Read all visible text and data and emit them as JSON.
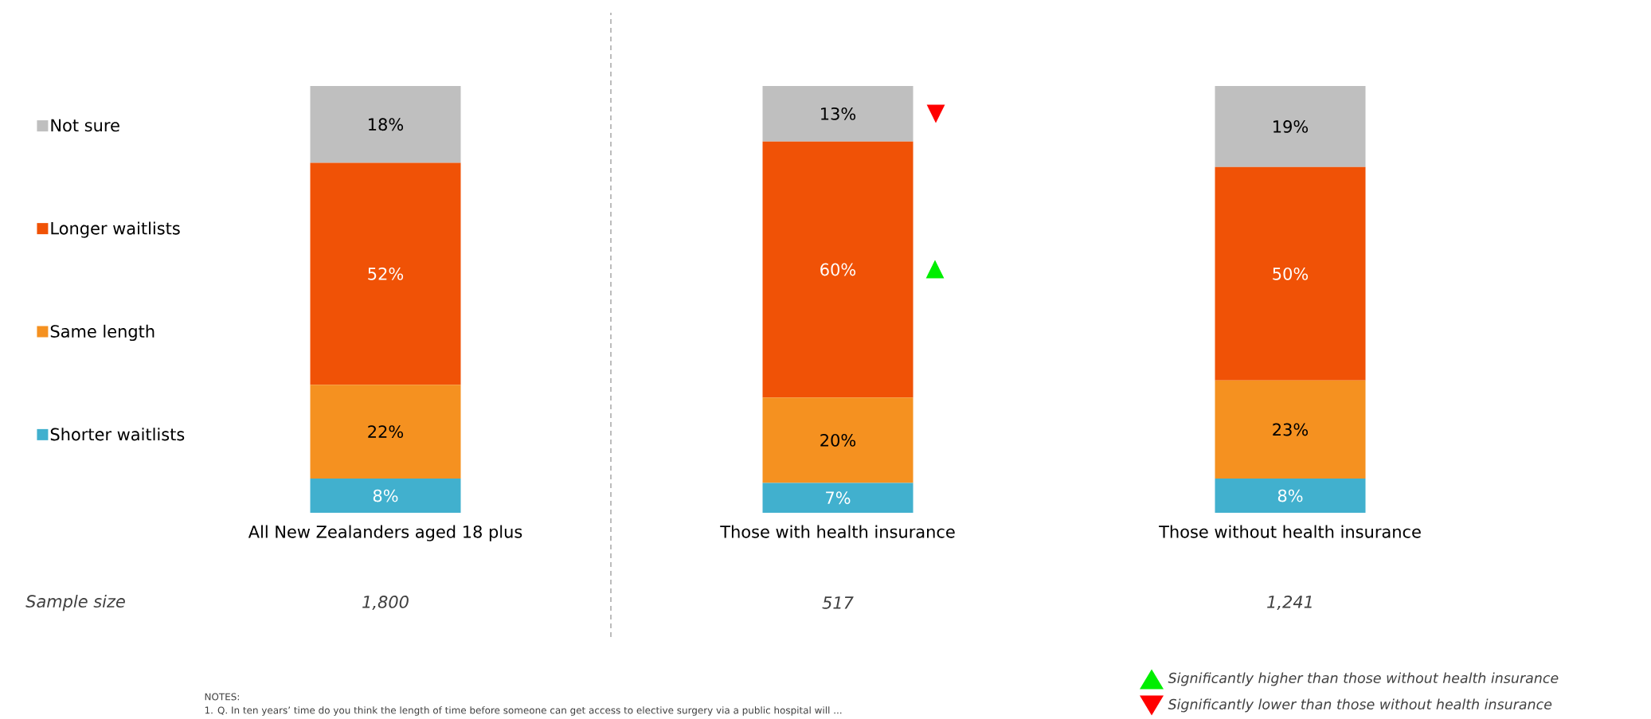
{
  "chart_data": {
    "type": "bar",
    "stacked": true,
    "categories": [
      "All New Zealanders aged 18 plus",
      "Those with health insurance",
      "Those without health insurance"
    ],
    "series": [
      {
        "name": "Shorter waitlists",
        "color": "#41b0ce",
        "values": [
          8,
          7,
          8
        ],
        "value_labels": [
          "8%",
          "7%",
          "8%"
        ]
      },
      {
        "name": "Same length",
        "color": "#f59120",
        "values": [
          22,
          20,
          23
        ],
        "value_labels": [
          "22%",
          "20%",
          "23%"
        ]
      },
      {
        "name": "Longer waitlists",
        "color": "#f05206",
        "values": [
          52,
          60,
          50
        ],
        "value_labels": [
          "52%",
          "60%",
          "50%"
        ]
      },
      {
        "name": "Not sure",
        "color": "#bfbfbf",
        "values": [
          18,
          13,
          19
        ],
        "value_labels": [
          "18%",
          "13%",
          "19%"
        ]
      }
    ],
    "legend": "left",
    "annotations": [
      "Sample size",
      "1,800",
      "517",
      "1,241",
      "NOTES:",
      "1. Q. In ten years’ time do you think the length of time before someone can get access to elective surgery via a public hospital will ...",
      "Significantly higher than those without health insurance",
      "Significantly lower than those without health insurance",
      "▲",
      "▼"
    ]
  }
}
